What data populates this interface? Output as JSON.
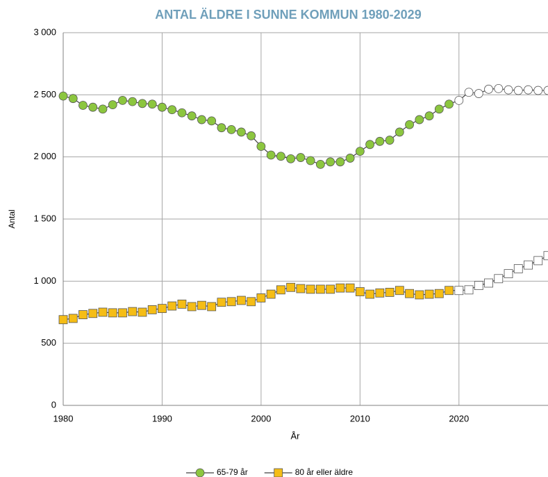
{
  "chart_data": {
    "type": "line",
    "title": "ANTAL ÄLDRE I SUNNE KOMMUN 1980-2029",
    "x_label": "År",
    "y_label": "Antal",
    "x": [
      1980,
      1981,
      1982,
      1983,
      1984,
      1985,
      1986,
      1987,
      1988,
      1989,
      1990,
      1991,
      1992,
      1993,
      1994,
      1995,
      1996,
      1997,
      1998,
      1999,
      2000,
      2001,
      2002,
      2003,
      2004,
      2005,
      2006,
      2007,
      2008,
      2009,
      2010,
      2011,
      2012,
      2013,
      2014,
      2015,
      2016,
      2017,
      2018,
      2019,
      2020,
      2021,
      2022,
      2023,
      2024,
      2025,
      2026,
      2027,
      2028,
      2029
    ],
    "series": [
      {
        "name": "65-79 år",
        "color": "#8cc63f",
        "marker": "circle",
        "values": [
          2490,
          2470,
          2415,
          2400,
          2385,
          2420,
          2455,
          2445,
          2430,
          2425,
          2400,
          2380,
          2355,
          2330,
          2300,
          2290,
          2235,
          2220,
          2200,
          2170,
          2085,
          2015,
          2005,
          1985,
          1995,
          1970,
          1940,
          1960,
          1960,
          1990,
          2045,
          2100,
          2125,
          2135,
          2200,
          2260,
          2300,
          2330,
          2385,
          2425,
          2455,
          2520,
          2510,
          2545,
          2550,
          2540,
          2535,
          2540,
          2535,
          2535
        ]
      },
      {
        "name": "80 år eller äldre",
        "color": "#f5bd16",
        "marker": "square",
        "values": [
          690,
          700,
          730,
          740,
          750,
          745,
          745,
          755,
          750,
          770,
          780,
          800,
          815,
          795,
          805,
          795,
          830,
          835,
          845,
          835,
          865,
          895,
          930,
          950,
          940,
          935,
          935,
          935,
          945,
          945,
          915,
          895,
          905,
          910,
          925,
          900,
          890,
          895,
          900,
          925,
          925,
          930,
          965,
          985,
          1020,
          1060,
          1100,
          1130,
          1165,
          1205
        ]
      }
    ],
    "line_color": "#404040",
    "hollow_from": 2020,
    "xlim": [
      1980,
      2029
    ],
    "xticks": [
      1980,
      1990,
      2000,
      2010,
      2020
    ],
    "ylim": [
      0,
      3000
    ],
    "yticks": [
      0,
      500,
      {
        "value": 1000,
        "label": "1 000"
      },
      {
        "value": 1500,
        "label": "1 500"
      },
      {
        "value": 2000,
        "label": "2 000"
      },
      {
        "value": 2500,
        "label": "2 500"
      },
      {
        "value": 3000,
        "label": "3 000"
      }
    ],
    "grid": true,
    "legend": "bottom"
  }
}
